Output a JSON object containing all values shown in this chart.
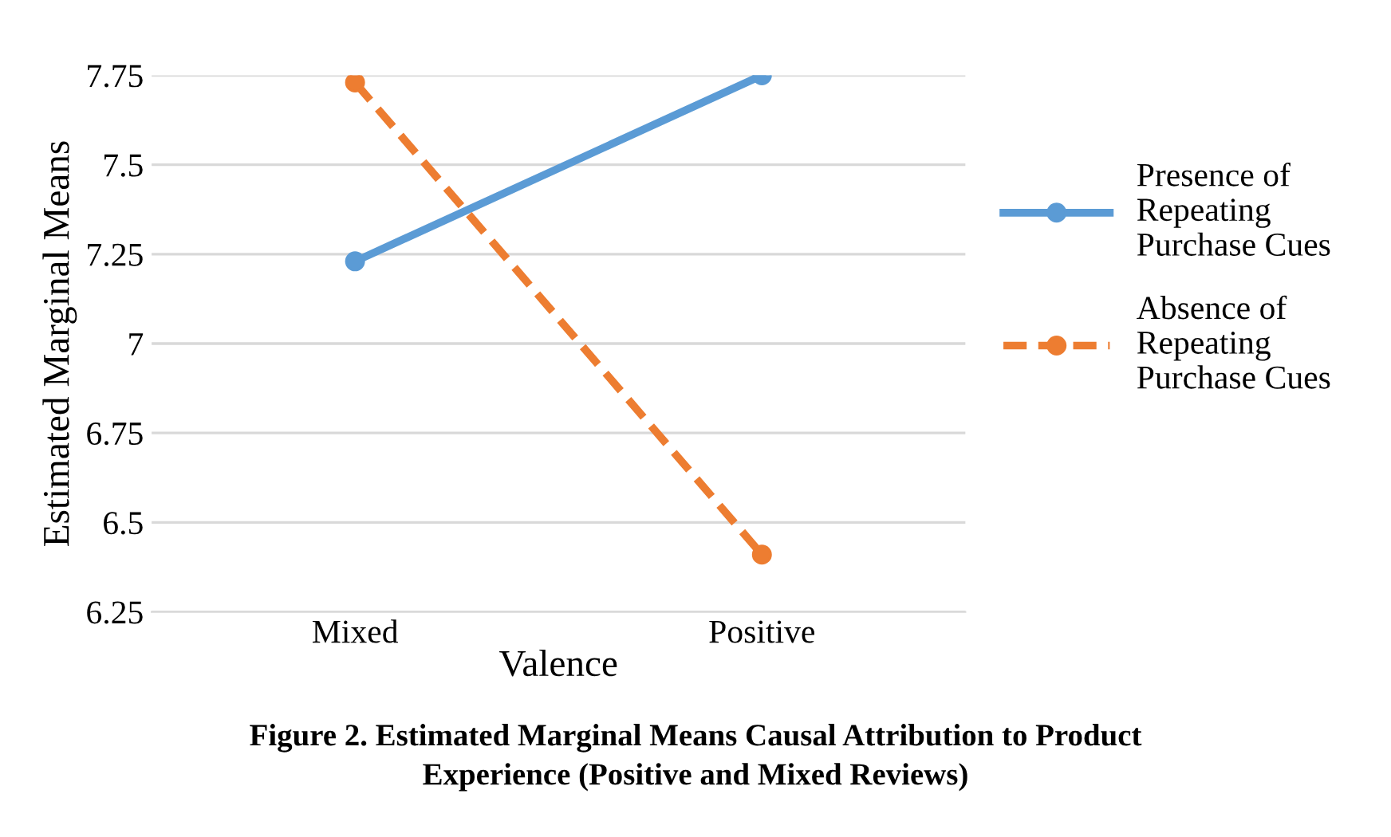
{
  "chart_data": {
    "type": "line",
    "xlabel": "Valence",
    "ylabel": "Estimated Marginal Means",
    "categories": [
      "Mixed",
      "Positive"
    ],
    "series": [
      {
        "name": "Presence of Repeating Purchase Cues",
        "color": "#5b9bd5",
        "values": [
          7.23,
          7.75
        ],
        "line_style": "solid"
      },
      {
        "name": "Absence of Repeating Purchase Cues",
        "color": "#ed7d31",
        "values": [
          7.73,
          6.41
        ],
        "line_style": "dashed"
      }
    ],
    "ylim": [
      6.25,
      7.75
    ],
    "yticks": [
      7.75,
      7.5,
      7.25,
      7,
      6.75,
      6.5,
      6.25
    ],
    "grid": "y",
    "legend": "right",
    "marker": "circle",
    "annotations": [
      "Figure 2. Estimated Marginal Means Causal Attribution to Product\nExperience (Positive and Mixed Reviews)"
    ]
  }
}
